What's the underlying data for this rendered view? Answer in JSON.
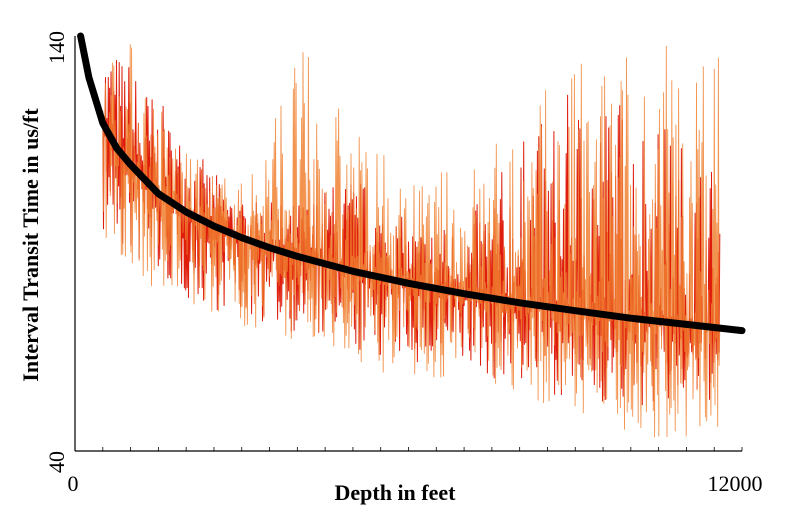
{
  "chart_data": {
    "type": "line",
    "title": "",
    "xlabel": "Depth in feet",
    "ylabel": "Interval Transit Time in us/ft",
    "xlim": [
      0,
      12000
    ],
    "ylim": [
      40,
      140
    ],
    "x_tick_labels": [
      "0",
      "12000"
    ],
    "y_tick_labels": [
      "140",
      "40"
    ],
    "grid": false,
    "legend": "none",
    "colors": {
      "log_dark": "#dd1100",
      "log_light": "#f08030",
      "trend": "#000000",
      "axis": "#000000"
    },
    "series": [
      {
        "role": "measured-log-dark",
        "color": "#dd1100",
        "envelope": {
          "x": [
            500,
            1000,
            2000,
            3000,
            4000,
            5000,
            6000,
            7000,
            8000,
            9000,
            10000,
            11000,
            11600
          ],
          "low": [
            90,
            85,
            76,
            72,
            68,
            63,
            61,
            58,
            56,
            52,
            50,
            50,
            52
          ],
          "high": [
            140,
            135,
            115,
            100,
            100,
            108,
            95,
            95,
            115,
            128,
            128,
            115,
            110
          ]
        }
      },
      {
        "role": "measured-log-light",
        "color": "#f08030",
        "envelope": {
          "x": [
            500,
            1000,
            2000,
            3000,
            4000,
            5000,
            6000,
            7000,
            8000,
            9000,
            10000,
            11000,
            11600
          ],
          "low": [
            92,
            80,
            74,
            70,
            66,
            60,
            58,
            56,
            54,
            46,
            44,
            42,
            40
          ],
          "high": [
            140,
            140,
            112,
            105,
            140,
            120,
            105,
            110,
            122,
            135,
            140,
            140,
            140
          ]
        }
      },
      {
        "role": "trend-line",
        "color": "#000000",
        "x": [
          100,
          250,
          500,
          750,
          1000,
          1500,
          2000,
          2500,
          3000,
          3500,
          4000,
          5000,
          6000,
          7000,
          8000,
          9000,
          10000,
          11000,
          12000
        ],
        "y": [
          140,
          130,
          119,
          113,
          109,
          102,
          97.6,
          94.2,
          91.4,
          89.0,
          86.9,
          83.3,
          80.4,
          77.9,
          75.7,
          73.8,
          72.0,
          70.5,
          69.0
        ]
      }
    ]
  }
}
